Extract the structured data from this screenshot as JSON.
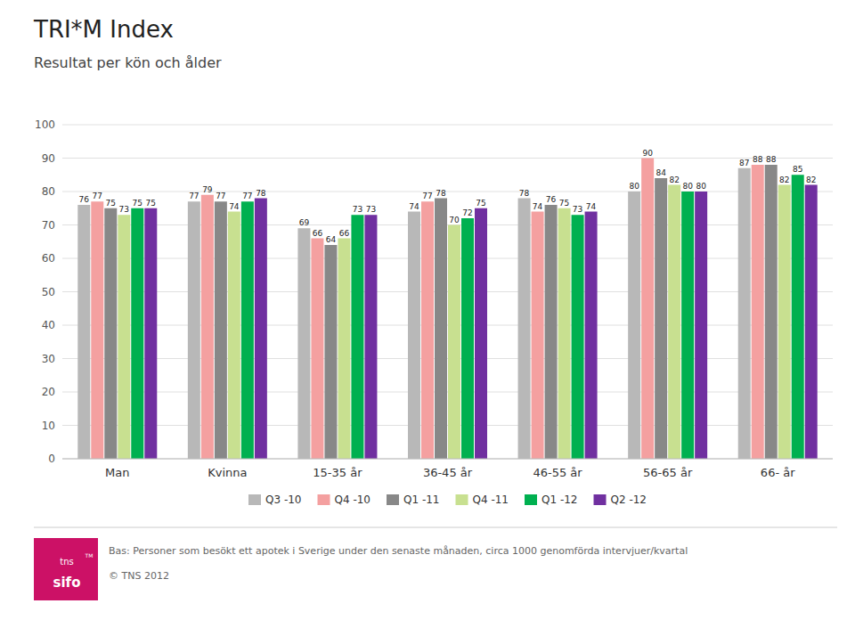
{
  "chart_data": {
    "type": "bar",
    "title": "TRI*M Index",
    "subtitle": "Resultat per kön och ålder",
    "categories": [
      "Man",
      "Kvinna",
      "15-35 år",
      "36-45 år",
      "46-55 år",
      "56-65 år",
      "66- år"
    ],
    "series": [
      {
        "name": "Q3 -10",
        "color": "#b8b8b8",
        "values": [
          76,
          77,
          69,
          74,
          78,
          80,
          87
        ]
      },
      {
        "name": "Q4 -10",
        "color": "#f4a0a0",
        "values": [
          77,
          79,
          66,
          77,
          74,
          90,
          88
        ]
      },
      {
        "name": "Q1 -11",
        "color": "#888888",
        "values": [
          75,
          77,
          64,
          78,
          76,
          84,
          88
        ]
      },
      {
        "name": "Q4 -11",
        "color": "#c8e090",
        "values": [
          73,
          74,
          66,
          70,
          75,
          82,
          82
        ]
      },
      {
        "name": "Q1 -12",
        "color": "#00b050",
        "values": [
          75,
          77,
          73,
          72,
          73,
          80,
          85
        ]
      },
      {
        "name": "Q2 -12",
        "color": "#7030a0",
        "values": [
          75,
          78,
          73,
          75,
          74,
          80,
          82
        ]
      }
    ],
    "ylim": [
      0,
      100
    ],
    "yticks": [
      0,
      10,
      20,
      30,
      40,
      50,
      60,
      70,
      80,
      90,
      100
    ],
    "grid": true,
    "data_labels": true,
    "legend": "bottom",
    "annotations": [
      "Bas: Personer som besökt ett apotek i Sverige under den senaste månaden, circa 1000 genomförda intervjuer/kvartal",
      "© TNS 2012",
      "tns",
      "sifo",
      "TM"
    ]
  }
}
